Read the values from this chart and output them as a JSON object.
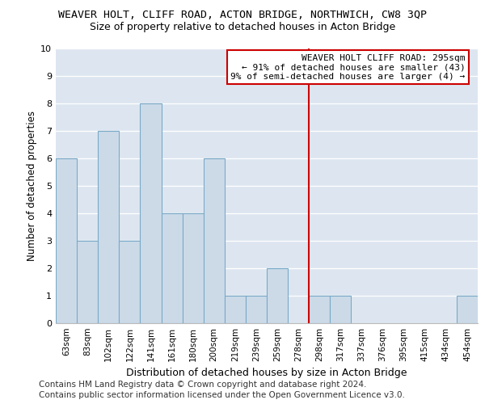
{
  "title": "WEAVER HOLT, CLIFF ROAD, ACTON BRIDGE, NORTHWICH, CW8 3QP",
  "subtitle": "Size of property relative to detached houses in Acton Bridge",
  "xlabel": "Distribution of detached houses by size in Acton Bridge",
  "ylabel": "Number of detached properties",
  "categories": [
    "63sqm",
    "83sqm",
    "102sqm",
    "122sqm",
    "141sqm",
    "161sqm",
    "180sqm",
    "200sqm",
    "219sqm",
    "239sqm",
    "259sqm",
    "278sqm",
    "298sqm",
    "317sqm",
    "337sqm",
    "376sqm",
    "395sqm",
    "415sqm",
    "434sqm",
    "454sqm"
  ],
  "values": [
    6,
    3,
    7,
    3,
    8,
    4,
    4,
    6,
    1,
    1,
    2,
    0,
    1,
    1,
    0,
    0,
    0,
    0,
    0,
    1
  ],
  "bar_color": "#ccdae8",
  "bar_edge_color": "#7aaac8",
  "vline_color": "#cc0000",
  "annotation_text": "WEAVER HOLT CLIFF ROAD: 295sqm\n← 91% of detached houses are smaller (43)\n9% of semi-detached houses are larger (4) →",
  "annotation_box_color": "#ffffff",
  "annotation_box_edge": "#cc0000",
  "ylim": [
    0,
    10
  ],
  "yticks": [
    0,
    1,
    2,
    3,
    4,
    5,
    6,
    7,
    8,
    9,
    10
  ],
  "background_color": "#dde6f0",
  "grid_color": "#ffffff",
  "footer_line1": "Contains HM Land Registry data © Crown copyright and database right 2024.",
  "footer_line2": "Contains public sector information licensed under the Open Government Licence v3.0.",
  "title_fontsize": 9.5,
  "subtitle_fontsize": 9,
  "xlabel_fontsize": 9,
  "ylabel_fontsize": 8.5,
  "tick_fontsize": 7.5,
  "annotation_fontsize": 8,
  "footer_fontsize": 7.5
}
